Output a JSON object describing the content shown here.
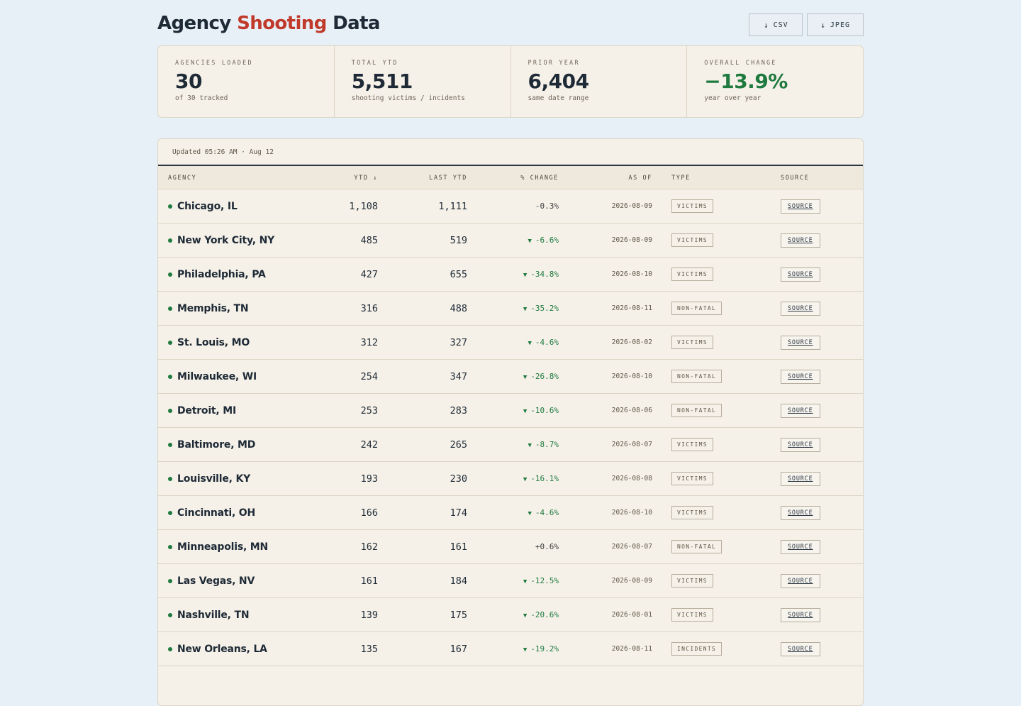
{
  "header": {
    "title_pre": "Agency",
    "title_accent": "Shooting",
    "title_post": "Data",
    "buttons": [
      {
        "icon": "download-icon",
        "glyph": "↓",
        "label": "CSV"
      },
      {
        "icon": "download-icon",
        "glyph": "↓",
        "label": "JPEG"
      }
    ]
  },
  "stats": [
    {
      "label": "AGENCIES LOADED",
      "value": "30",
      "sub": "of 30 tracked",
      "tone": "normal"
    },
    {
      "label": "TOTAL YTD",
      "value": "5,511",
      "sub": "shooting victims / incidents",
      "tone": "normal"
    },
    {
      "label": "PRIOR YEAR",
      "value": "6,404",
      "sub": "same date range",
      "tone": "normal"
    },
    {
      "label": "OVERALL CHANGE",
      "value": "−13.9%",
      "sub": "year over year",
      "tone": "good"
    }
  ],
  "table": {
    "updated": "Updated 05:26 AM · Aug 12",
    "columns": {
      "agency": "AGENCY",
      "ytd": "YTD ↓",
      "last_ytd": "LAST YTD",
      "change": "% CHANGE",
      "as_of": "AS OF",
      "type": "TYPE",
      "source": "SOURCE"
    },
    "rows": [
      {
        "agency": "Chicago, IL",
        "ytd": "1,108",
        "last": "1,111",
        "change": "-0.3%",
        "down": false,
        "as_of": "2026-08-09",
        "type": "VICTIMS",
        "source": "SOURCE"
      },
      {
        "agency": "New York City, NY",
        "ytd": "485",
        "last": "519",
        "change": "-6.6%",
        "down": true,
        "as_of": "2026-08-09",
        "type": "VICTIMS",
        "source": "SOURCE"
      },
      {
        "agency": "Philadelphia, PA",
        "ytd": "427",
        "last": "655",
        "change": "-34.8%",
        "down": true,
        "as_of": "2026-08-10",
        "type": "VICTIMS",
        "source": "SOURCE"
      },
      {
        "agency": "Memphis, TN",
        "ytd": "316",
        "last": "488",
        "change": "-35.2%",
        "down": true,
        "as_of": "2026-08-11",
        "type": "NON-FATAL",
        "source": "SOURCE"
      },
      {
        "agency": "St. Louis, MO",
        "ytd": "312",
        "last": "327",
        "change": "-4.6%",
        "down": true,
        "as_of": "2026-08-02",
        "type": "VICTIMS",
        "source": "SOURCE"
      },
      {
        "agency": "Milwaukee, WI",
        "ytd": "254",
        "last": "347",
        "change": "-26.8%",
        "down": true,
        "as_of": "2026-08-10",
        "type": "NON-FATAL",
        "source": "SOURCE"
      },
      {
        "agency": "Detroit, MI",
        "ytd": "253",
        "last": "283",
        "change": "-10.6%",
        "down": true,
        "as_of": "2026-08-06",
        "type": "NON-FATAL",
        "source": "SOURCE"
      },
      {
        "agency": "Baltimore, MD",
        "ytd": "242",
        "last": "265",
        "change": "-8.7%",
        "down": true,
        "as_of": "2026-08-07",
        "type": "VICTIMS",
        "source": "SOURCE"
      },
      {
        "agency": "Louisville, KY",
        "ytd": "193",
        "last": "230",
        "change": "-16.1%",
        "down": true,
        "as_of": "2026-08-08",
        "type": "VICTIMS",
        "source": "SOURCE"
      },
      {
        "agency": "Cincinnati, OH",
        "ytd": "166",
        "last": "174",
        "change": "-4.6%",
        "down": true,
        "as_of": "2026-08-10",
        "type": "VICTIMS",
        "source": "SOURCE"
      },
      {
        "agency": "Minneapolis, MN",
        "ytd": "162",
        "last": "161",
        "change": "+0.6%",
        "down": false,
        "as_of": "2026-08-07",
        "type": "NON-FATAL",
        "source": "SOURCE"
      },
      {
        "agency": "Las Vegas, NV",
        "ytd": "161",
        "last": "184",
        "change": "-12.5%",
        "down": true,
        "as_of": "2026-08-09",
        "type": "VICTIMS",
        "source": "SOURCE"
      },
      {
        "agency": "Nashville, TN",
        "ytd": "139",
        "last": "175",
        "change": "-20.6%",
        "down": true,
        "as_of": "2026-08-01",
        "type": "VICTIMS",
        "source": "SOURCE"
      },
      {
        "agency": "New Orleans, LA",
        "ytd": "135",
        "last": "167",
        "change": "-19.2%",
        "down": true,
        "as_of": "2026-08-11",
        "type": "INCIDENTS",
        "source": "SOURCE"
      }
    ]
  },
  "colors": {
    "accent": "#c0392b",
    "good": "#1f7a3f",
    "background": "#e8f0f7",
    "card": "#f5f1e8"
  }
}
